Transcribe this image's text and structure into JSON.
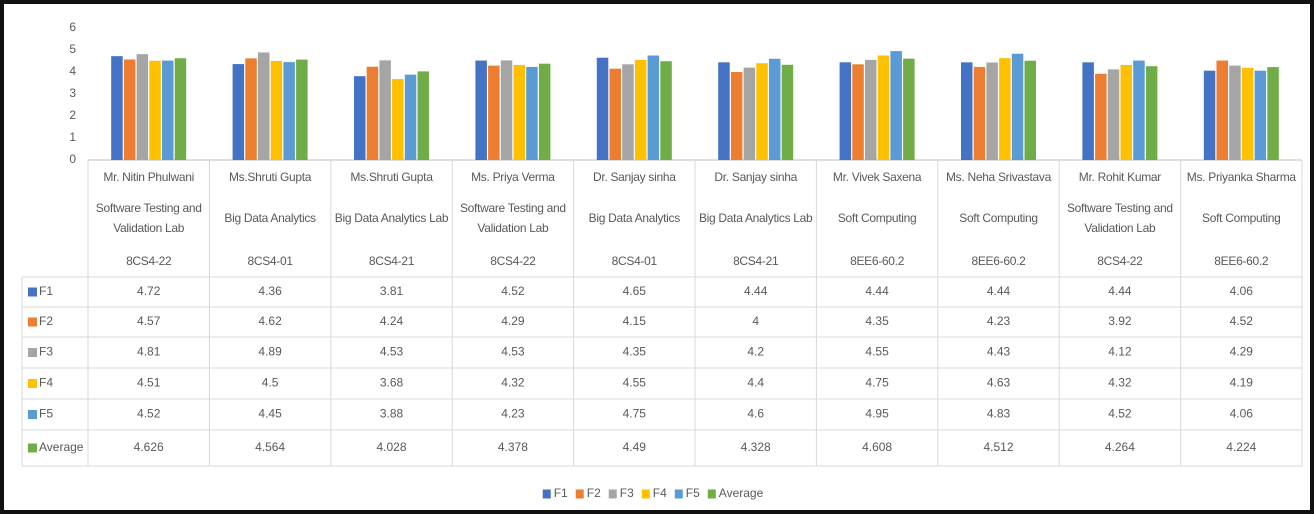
{
  "chart_data": {
    "type": "bar",
    "categories": [
      [
        "Mr. Nitin Phulwani",
        "Software Testing and Validation Lab",
        "8CS4-22"
      ],
      [
        "Ms.Shruti Gupta",
        "Big Data Analytics",
        "8CS4-01"
      ],
      [
        "Ms.Shruti Gupta",
        "Big Data Analytics Lab",
        "8CS4-21"
      ],
      [
        "Ms. Priya Verma",
        "Software Testing and Validation Lab",
        "8CS4-22"
      ],
      [
        "Dr. Sanjay sinha",
        "Big Data Analytics",
        "8CS4-01"
      ],
      [
        "Dr. Sanjay sinha",
        "Big Data Analytics Lab",
        "8CS4-21"
      ],
      [
        "Mr. Vivek Saxena",
        "Soft Computing",
        "8EE6-60.2"
      ],
      [
        "Ms. Neha Srivastava",
        "Soft Computing",
        "8EE6-60.2"
      ],
      [
        "Mr. Rohit Kumar",
        "Software Testing and Validation Lab",
        "8CS4-22"
      ],
      [
        "Ms. Priyanka Sharma",
        "Soft Computing",
        "8EE6-60.2"
      ]
    ],
    "series": [
      {
        "name": "F1",
        "color": "#4472c4",
        "values": [
          4.72,
          4.36,
          3.81,
          4.52,
          4.65,
          4.44,
          4.44,
          4.44,
          4.44,
          4.06
        ]
      },
      {
        "name": "F2",
        "color": "#ed7d31",
        "values": [
          4.57,
          4.62,
          4.24,
          4.29,
          4.15,
          4,
          4.35,
          4.23,
          3.92,
          4.52
        ]
      },
      {
        "name": "F3",
        "color": "#a5a5a5",
        "values": [
          4.81,
          4.89,
          4.53,
          4.53,
          4.35,
          4.2,
          4.55,
          4.43,
          4.12,
          4.29
        ]
      },
      {
        "name": "F4",
        "color": "#ffc000",
        "values": [
          4.51,
          4.5,
          3.68,
          4.32,
          4.55,
          4.4,
          4.75,
          4.63,
          4.32,
          4.19
        ]
      },
      {
        "name": "F5",
        "color": "#5b9bd5",
        "values": [
          4.52,
          4.45,
          3.88,
          4.23,
          4.75,
          4.6,
          4.95,
          4.83,
          4.52,
          4.06
        ]
      },
      {
        "name": "Average",
        "color": "#70ad47",
        "values": [
          4.626,
          4.564,
          4.028,
          4.378,
          4.49,
          4.328,
          4.608,
          4.512,
          4.264,
          4.224
        ]
      }
    ],
    "ylim": [
      0,
      6
    ],
    "yticks": [
      0,
      1,
      2,
      3,
      4,
      5,
      6
    ],
    "grid": false,
    "legend": "bottom"
  }
}
